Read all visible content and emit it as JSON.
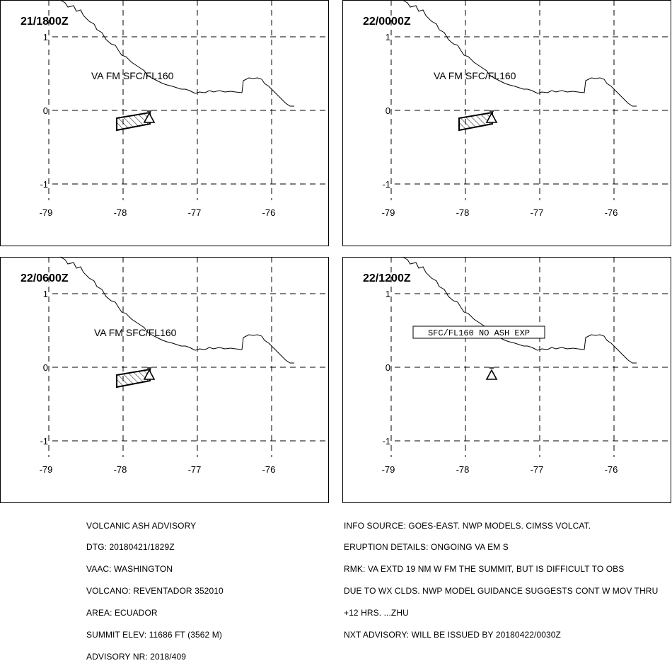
{
  "panels": [
    {
      "time": "21/1800Z",
      "label": "VA FM SFC/FL160",
      "label_boxed": false,
      "show_ash": true
    },
    {
      "time": "22/0000Z",
      "label": "VA FM SFC/FL160",
      "label_boxed": false,
      "show_ash": true
    },
    {
      "time": "22/0600Z",
      "label": "VA FM SFC/FL160",
      "label_boxed": false,
      "show_ash": true
    },
    {
      "time": "22/1200Z",
      "label": "SFC/FL160 NO ASH EXP",
      "label_boxed": true,
      "show_ash": false
    }
  ],
  "axes": {
    "lon_ticks": [
      "-79",
      "-78",
      "-77",
      "-76"
    ],
    "lat_ticks": [
      "1",
      "0",
      "-1"
    ]
  },
  "advisory_left": [
    "VOLCANIC ASH ADVISORY",
    "DTG: 20180421/1829Z",
    "VAAC: WASHINGTON",
    "VOLCANO: REVENTADOR 352010",
    "AREA: ECUADOR",
    "SUMMIT ELEV: 11686 FT (3562 M)",
    "ADVISORY NR: 2018/409"
  ],
  "advisory_right": [
    "INFO SOURCE: GOES-EAST. NWP MODELS. CIMSS VOLCAT.",
    "ERUPTION DETAILS: ONGOING VA EM S",
    "RMK: VA EXTD 19 NM W FM THE SUMMIT, BUT IS DIFFICULT TO OBS",
    "DUE TO WX CLDS. NWP MODEL GUIDANCE SUGGESTS CONT W MOV THRU",
    "+12 HRS. ...ZHU",
    "NXT ADVISORY: WILL BE ISSUED BY 20180422/0030Z"
  ],
  "colors": {
    "line": "#000000",
    "background": "#ffffff"
  }
}
